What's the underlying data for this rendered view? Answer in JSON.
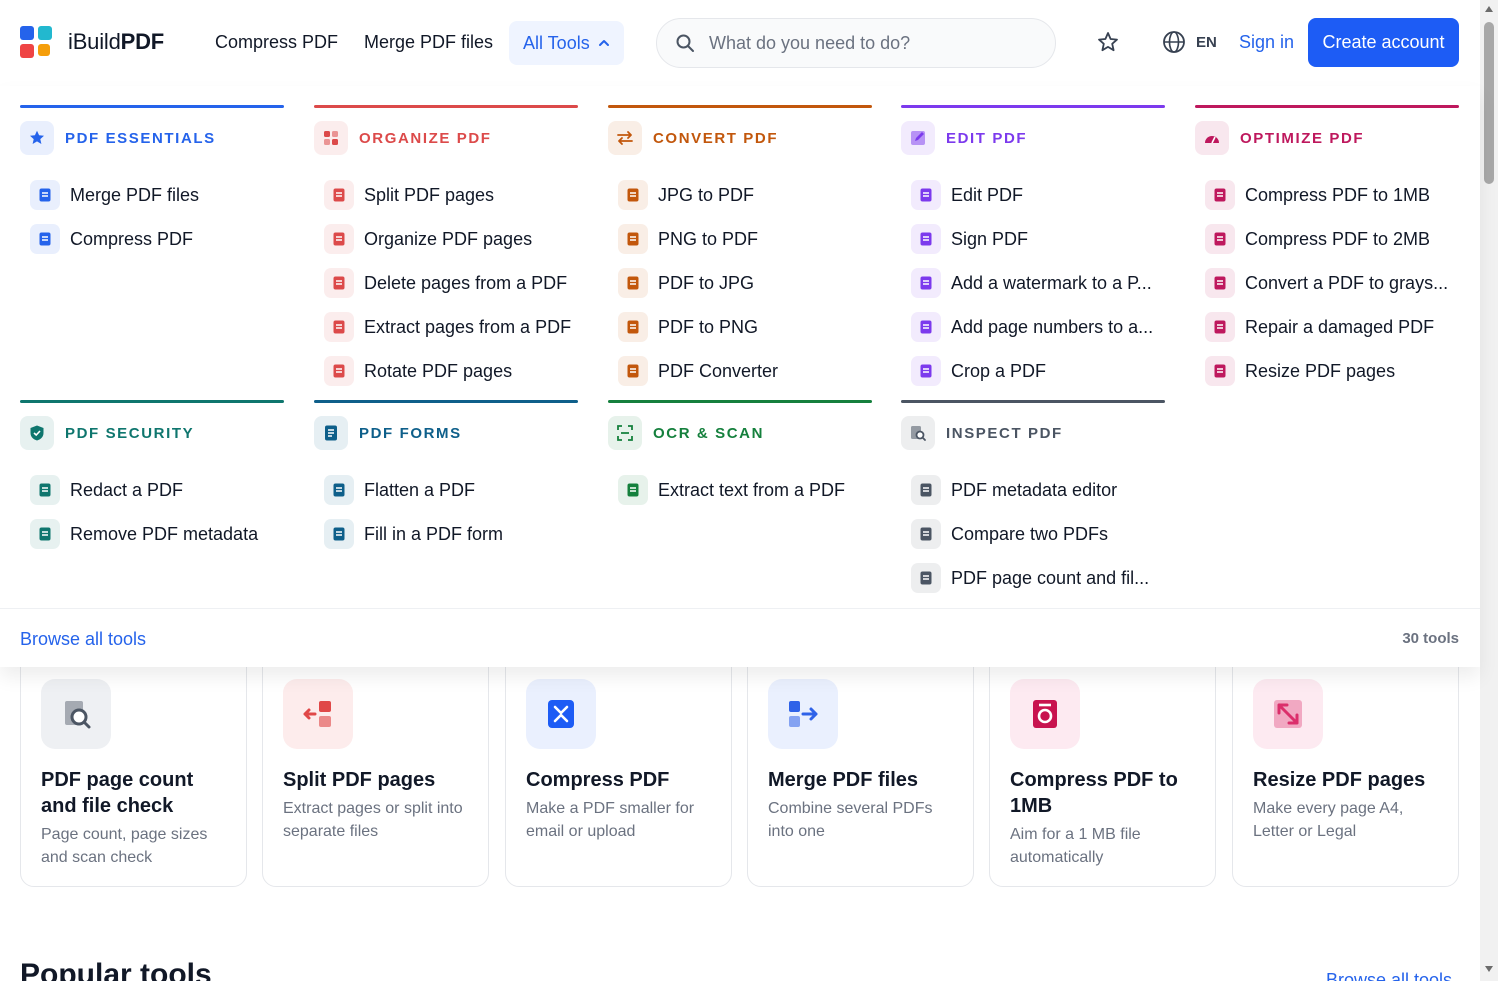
{
  "brand": {
    "name_prefix": "iBuild",
    "name_suffix": "PDF"
  },
  "nav": {
    "compress": "Compress PDF",
    "merge": "Merge PDF files",
    "all_tools": "All Tools"
  },
  "search": {
    "placeholder": "What do you need to do?"
  },
  "header": {
    "lang": "EN",
    "sign_in": "Sign in",
    "create_account": "Create account"
  },
  "categories": [
    {
      "title": "PDF ESSENTIALS",
      "color": "#2563eb",
      "items": [
        "Merge PDF files",
        "Compress PDF"
      ]
    },
    {
      "title": "ORGANIZE PDF",
      "color": "#dc4a4a",
      "items": [
        "Split PDF pages",
        "Organize PDF pages",
        "Delete pages from a PDF",
        "Extract pages from a PDF",
        "Rotate PDF pages"
      ]
    },
    {
      "title": "CONVERT PDF",
      "color": "#c2570c",
      "items": [
        "JPG to PDF",
        "PNG to PDF",
        "PDF to JPG",
        "PDF to PNG",
        "PDF Converter"
      ]
    },
    {
      "title": "EDIT PDF",
      "color": "#7c3aed",
      "items": [
        "Edit PDF",
        "Sign PDF",
        "Add a watermark to a P...",
        "Add page numbers to a...",
        "Crop a PDF"
      ]
    },
    {
      "title": "OPTIMIZE PDF",
      "color": "#be185d",
      "items": [
        "Compress PDF to 1MB",
        "Compress PDF to 2MB",
        "Convert a PDF to grays...",
        "Repair a damaged PDF",
        "Resize PDF pages"
      ]
    },
    {
      "title": "PDF SECURITY",
      "color": "#0f766e",
      "items": [
        "Redact a PDF",
        "Remove PDF metadata"
      ]
    },
    {
      "title": "PDF FORMS",
      "color": "#0e5f8a",
      "items": [
        "Flatten a PDF",
        "Fill in a PDF form"
      ]
    },
    {
      "title": "OCR & SCAN",
      "color": "#15803d",
      "items": [
        "Extract text from a PDF"
      ]
    },
    {
      "title": "INSPECT PDF",
      "color": "#4b5563",
      "items": [
        "PDF metadata editor",
        "Compare two PDFs",
        "PDF page count and fil..."
      ]
    }
  ],
  "menu_footer": {
    "browse_all": "Browse all tools",
    "tool_count": "30 tools"
  },
  "cards": [
    {
      "title": "PDF page count and file check",
      "desc": "Page count, page sizes and scan check"
    },
    {
      "title": "Split PDF pages",
      "desc": "Extract pages or split into separate files"
    },
    {
      "title": "Compress PDF",
      "desc": "Make a PDF smaller for email or upload"
    },
    {
      "title": "Merge PDF files",
      "desc": "Combine several PDFs into one"
    },
    {
      "title": "Compress PDF to 1MB",
      "desc": "Aim for a 1 MB file automatically"
    },
    {
      "title": "Resize PDF pages",
      "desc": "Make every page A4, Letter or Legal"
    }
  ],
  "popular": {
    "title": "Popular tools",
    "browse_all": "Browse all tools"
  }
}
